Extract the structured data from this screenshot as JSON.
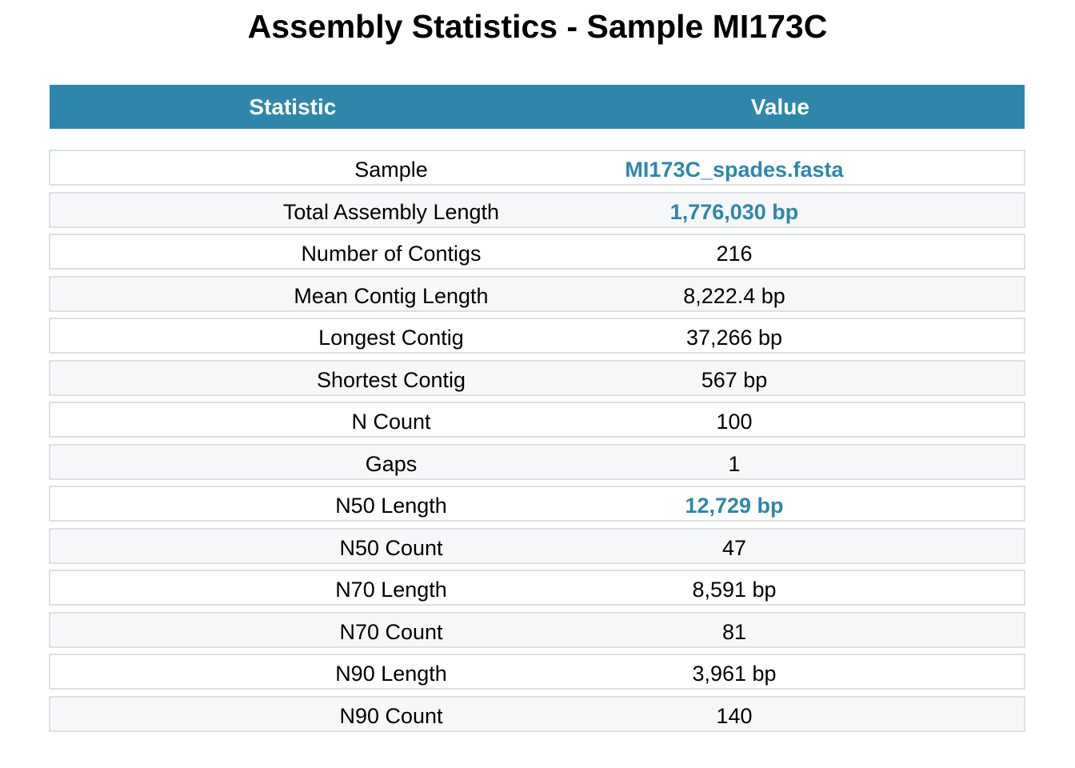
{
  "chart_data": {
    "type": "table",
    "title": "Assembly Statistics - Sample MI173C",
    "columns": [
      "Statistic",
      "Value"
    ],
    "header_color": "#2e87ab",
    "highlight_color": "#2e87ab",
    "row_colors": [
      "#ffffff",
      "#f5f7f9"
    ],
    "border_color": "#dde1e4",
    "rows": [
      {
        "statistic": "Sample",
        "value": "MI173C_spades.fasta",
        "highlight": true
      },
      {
        "statistic": "Total Assembly Length",
        "value": "1,776,030 bp",
        "highlight": true
      },
      {
        "statistic": "Number of Contigs",
        "value": "216",
        "highlight": false
      },
      {
        "statistic": "Mean Contig Length",
        "value": "8,222.4 bp",
        "highlight": false
      },
      {
        "statistic": "Longest Contig",
        "value": "37,266 bp",
        "highlight": false
      },
      {
        "statistic": "Shortest Contig",
        "value": "567 bp",
        "highlight": false
      },
      {
        "statistic": "N Count",
        "value": "100",
        "highlight": false
      },
      {
        "statistic": "Gaps",
        "value": "1",
        "highlight": false
      },
      {
        "statistic": "N50 Length",
        "value": "12,729 bp",
        "highlight": true
      },
      {
        "statistic": "N50 Count",
        "value": "47",
        "highlight": false
      },
      {
        "statistic": "N70 Length",
        "value": "8,591 bp",
        "highlight": false
      },
      {
        "statistic": "N70 Count",
        "value": "81",
        "highlight": false
      },
      {
        "statistic": "N90 Length",
        "value": "3,961 bp",
        "highlight": false
      },
      {
        "statistic": "N90 Count",
        "value": "140",
        "highlight": false
      }
    ]
  }
}
